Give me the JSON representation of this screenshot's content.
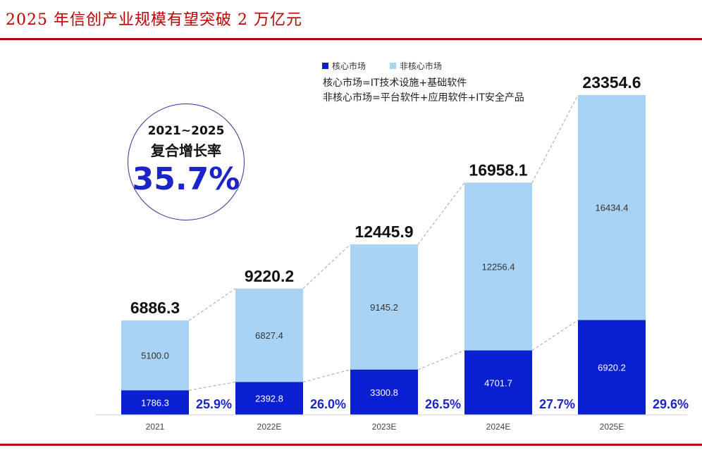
{
  "title": "2025 年信创产业规模有望突破 2 万亿元",
  "legend": {
    "core": "核心市场",
    "noncore": "非核心市场"
  },
  "notes": [
    "核心市场=IT技术设施+基础软件",
    "非核心市场=平台软件+应用软件+IT安全产品"
  ],
  "cagr": {
    "range": "2021~2025",
    "label": "复合增长率",
    "value": "35.7%"
  },
  "colors": {
    "core": "#0a1fd0",
    "noncore": "#a9d3f5",
    "pct_text": "#1a24c8",
    "title": "#c00000"
  },
  "chart_data": {
    "type": "bar",
    "stacked": true,
    "categories": [
      "2021",
      "2022E",
      "2023E",
      "2024E",
      "2025E"
    ],
    "series": [
      {
        "name": "核心市场",
        "values": [
          1786.3,
          2392.8,
          3300.8,
          4701.7,
          6920.2
        ]
      },
      {
        "name": "非核心市场",
        "values": [
          5100.0,
          6827.4,
          9145.2,
          12256.4,
          16434.4
        ]
      }
    ],
    "value_labels": {
      "core": [
        "1786.3",
        "2392.8",
        "3300.8",
        "4701.7",
        "6920.2"
      ],
      "noncore": [
        "5100.0",
        "6827.4",
        "9145.2",
        "12256.4",
        "16434.4"
      ]
    },
    "totals": [
      "6886.3",
      "9220.2",
      "12445.9",
      "16958.1",
      "23354.6"
    ],
    "core_share": [
      "25.9%",
      "26.0%",
      "26.5%",
      "27.7%",
      "29.6%"
    ],
    "ylim": [
      0,
      23354.6
    ]
  }
}
